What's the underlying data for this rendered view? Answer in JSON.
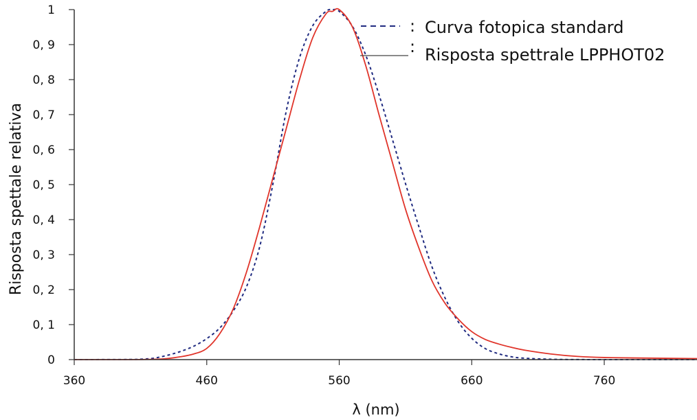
{
  "chart_data": {
    "type": "line",
    "title": "",
    "xlabel": "λ (nm)",
    "ylabel": "Risposta spettale relativa",
    "xlim": [
      360,
      830
    ],
    "ylim": [
      0,
      1
    ],
    "x_ticks": [
      "360",
      "460",
      "560",
      "660",
      "760"
    ],
    "y_ticks": [
      "0",
      "0, 1",
      "0, 2",
      "0, 3",
      "0, 4",
      "0, 5",
      "0, 6",
      "0, 7",
      "0, 8",
      "0, 9",
      "1"
    ],
    "grid": false,
    "legend_position": "top-right",
    "series": [
      {
        "name": "Curva fotopica standard",
        "style": "dashed",
        "color": "#1f2a80",
        "x": [
          360,
          400,
          410,
          420,
          430,
          440,
          450,
          460,
          470,
          480,
          490,
          500,
          510,
          520,
          530,
          540,
          550,
          555,
          560,
          570,
          580,
          590,
          600,
          610,
          620,
          630,
          640,
          650,
          660,
          670,
          680,
          690,
          700,
          720,
          740,
          760,
          800,
          830
        ],
        "y": [
          0,
          0.0004,
          0.0012,
          0.004,
          0.012,
          0.023,
          0.038,
          0.06,
          0.091,
          0.139,
          0.208,
          0.323,
          0.503,
          0.71,
          0.862,
          0.954,
          0.995,
          1.0,
          0.995,
          0.952,
          0.87,
          0.757,
          0.631,
          0.503,
          0.381,
          0.265,
          0.175,
          0.107,
          0.061,
          0.032,
          0.017,
          0.008,
          0.004,
          0.001,
          0.0002,
          0.0001,
          0,
          0
        ]
      },
      {
        "name": "Risposta spettrale LPPHOT02",
        "style": "solid",
        "color": "#e0342a",
        "x": [
          360,
          400,
          420,
          430,
          440,
          450,
          460,
          470,
          480,
          490,
          500,
          510,
          520,
          530,
          540,
          550,
          555,
          560,
          570,
          580,
          590,
          600,
          610,
          620,
          630,
          640,
          650,
          660,
          670,
          680,
          690,
          700,
          720,
          740,
          760,
          800,
          830
        ],
        "y": [
          0,
          0,
          0.001,
          0.003,
          0.008,
          0.016,
          0.032,
          0.075,
          0.145,
          0.25,
          0.38,
          0.52,
          0.66,
          0.8,
          0.92,
          0.988,
          0.995,
          1.0,
          0.95,
          0.84,
          0.7,
          0.565,
          0.43,
          0.32,
          0.225,
          0.16,
          0.115,
          0.08,
          0.058,
          0.045,
          0.035,
          0.027,
          0.016,
          0.009,
          0.006,
          0.004,
          0.003
        ]
      }
    ]
  }
}
